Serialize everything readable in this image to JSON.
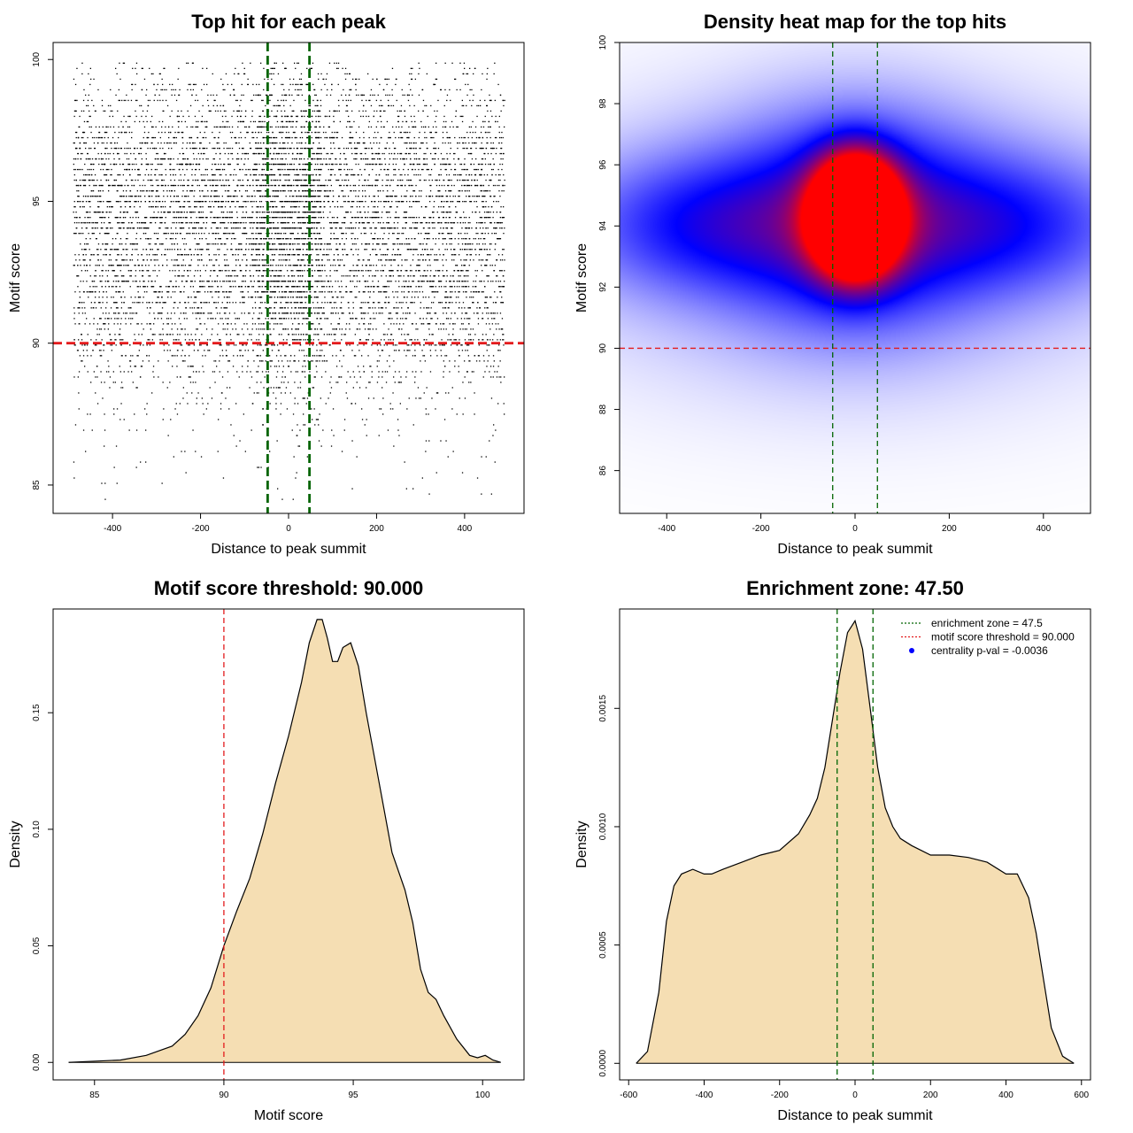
{
  "chart_data": [
    {
      "type": "scatter",
      "title": "Top hit for each peak",
      "xlabel": "Distance to peak summit",
      "ylabel": "Motif score",
      "xlim": [
        -535,
        535
      ],
      "ylim": [
        84.0,
        100.6
      ],
      "xticks": [
        -400,
        -200,
        0,
        200,
        400
      ],
      "yticks": [
        85,
        90,
        95,
        100
      ],
      "x_range_points": [
        -490,
        490
      ],
      "score_step": 0.1875,
      "y_profile": {
        "scores": [
          84.5,
          86.0,
          87.5,
          88.5,
          89.5,
          90.5,
          91.5,
          92.5,
          93.5,
          94.5,
          95.5,
          96.5,
          97.5,
          98.5,
          99.5,
          100.0
        ],
        "row_density": [
          0.01,
          0.03,
          0.08,
          0.18,
          0.35,
          0.55,
          0.75,
          0.9,
          1.0,
          1.0,
          0.95,
          0.8,
          0.55,
          0.35,
          0.18,
          0.1
        ]
      },
      "hlines": [
        {
          "y": 90,
          "color": "#e31a1c",
          "style": "dashed"
        }
      ],
      "vlines": [
        {
          "x": -47.5,
          "color": "#006400",
          "style": "dashed"
        },
        {
          "x": 47.5,
          "color": "#006400",
          "style": "dashed"
        }
      ]
    },
    {
      "type": "heatmap",
      "title": "Density heat map for the top hits",
      "xlabel": "Distance to peak summit",
      "ylabel": "Motif score",
      "xlim": [
        -500,
        500
      ],
      "ylim": [
        84.6,
        100.0
      ],
      "xticks": [
        -400,
        -200,
        0,
        200,
        400
      ],
      "yticks": [
        86,
        88,
        90,
        92,
        94,
        96,
        98,
        100
      ],
      "colormap": [
        "#ffffff",
        "#0000ff",
        "#ff0000"
      ],
      "blobs": [
        {
          "x": 0,
          "y": 94.95,
          "sx": 60,
          "sy": 1.1,
          "weight": 1.0
        },
        {
          "x": 0,
          "y": 93.7,
          "sx": 60,
          "sy": 1.1,
          "weight": 0.97
        },
        {
          "x": 0,
          "y": 94.3,
          "sx": 180,
          "sy": 2.4,
          "weight": 0.45
        },
        {
          "x": -340,
          "y": 94.1,
          "sx": 190,
          "sy": 1.6,
          "weight": 0.32
        },
        {
          "x": 340,
          "y": 94.1,
          "sx": 190,
          "sy": 1.6,
          "weight": 0.3
        },
        {
          "x": 0,
          "y": 93.5,
          "sx": 450,
          "sy": 3.4,
          "weight": 0.2
        }
      ],
      "hlines": [
        {
          "y": 90,
          "color": "#e31a1c",
          "style": "dashed"
        }
      ],
      "vlines": [
        {
          "x": -47.5,
          "color": "#006400",
          "style": "dashed"
        },
        {
          "x": 47.5,
          "color": "#006400",
          "style": "dashed"
        }
      ]
    },
    {
      "type": "area",
      "title": "Motif score threshold: 90.000",
      "xlabel": "Motif score",
      "ylabel": "Density",
      "xlim": [
        83.4,
        101.6
      ],
      "ylim": [
        -0.0075,
        0.1945
      ],
      "xticks": [
        85,
        90,
        95,
        100
      ],
      "yticks": [
        0.0,
        0.05,
        0.1,
        0.15
      ],
      "ytick_labels": [
        "0.00",
        "0.05",
        "0.10",
        "0.15"
      ],
      "fill": "#f5deb3",
      "x": [
        84.0,
        86.0,
        87.0,
        88.0,
        88.5,
        89.0,
        89.5,
        90.0,
        90.5,
        91.0,
        91.5,
        92.0,
        92.5,
        93.0,
        93.3,
        93.6,
        93.8,
        94.0,
        94.2,
        94.4,
        94.6,
        94.9,
        95.2,
        95.5,
        96.0,
        96.5,
        97.0,
        97.3,
        97.6,
        97.9,
        98.2,
        98.5,
        99.0,
        99.5,
        99.8,
        100.1,
        100.4,
        100.7
      ],
      "y": [
        0.0,
        0.001,
        0.003,
        0.007,
        0.012,
        0.02,
        0.032,
        0.05,
        0.065,
        0.079,
        0.098,
        0.12,
        0.14,
        0.163,
        0.18,
        0.19,
        0.19,
        0.182,
        0.172,
        0.172,
        0.178,
        0.18,
        0.17,
        0.15,
        0.12,
        0.09,
        0.074,
        0.06,
        0.04,
        0.03,
        0.027,
        0.02,
        0.01,
        0.003,
        0.002,
        0.003,
        0.001,
        0.0
      ],
      "vlines": [
        {
          "x": 90,
          "color": "#e31a1c",
          "style": "dashed"
        }
      ]
    },
    {
      "type": "area",
      "title": "Enrichment zone: 47.50",
      "xlabel": "Distance to peak summit",
      "ylabel": "Density",
      "xlim": [
        -624,
        624
      ],
      "ylim": [
        -7e-05,
        0.00192
      ],
      "xticks": [
        -600,
        -400,
        -200,
        0,
        200,
        400,
        600
      ],
      "yticks": [
        0.0,
        0.0005,
        0.001,
        0.0015
      ],
      "ytick_labels": [
        "0.0000",
        "0.0005",
        "0.0010",
        "0.0015"
      ],
      "fill": "#f5deb3",
      "x": [
        -580,
        -550,
        -520,
        -500,
        -480,
        -460,
        -430,
        -400,
        -380,
        -350,
        -300,
        -250,
        -200,
        -150,
        -120,
        -100,
        -80,
        -60,
        -40,
        -20,
        0,
        20,
        40,
        60,
        80,
        100,
        120,
        150,
        200,
        250,
        300,
        350,
        400,
        430,
        460,
        480,
        500,
        520,
        550,
        580
      ],
      "y": [
        0.0,
        5e-05,
        0.0003,
        0.0006,
        0.00075,
        0.0008,
        0.00082,
        0.0008,
        0.0008,
        0.00082,
        0.00085,
        0.00088,
        0.0009,
        0.00097,
        0.00105,
        0.00112,
        0.00125,
        0.00145,
        0.00165,
        0.00182,
        0.00187,
        0.00175,
        0.0015,
        0.00125,
        0.00108,
        0.001,
        0.00095,
        0.00092,
        0.00088,
        0.00088,
        0.00087,
        0.00085,
        0.0008,
        0.0008,
        0.0007,
        0.00055,
        0.00035,
        0.00015,
        3e-05,
        0.0
      ],
      "vlines": [
        {
          "x": -47.5,
          "color": "#006400",
          "style": "dashed"
        },
        {
          "x": 47.5,
          "color": "#006400",
          "style": "dashed"
        }
      ],
      "legend": {
        "placement": "top-right",
        "entries": [
          {
            "label": "enrichment zone = 47.5",
            "color": "#006400",
            "marker": "dotted-line"
          },
          {
            "label": "motif score threshold = 90.000",
            "color": "#e31a1c",
            "marker": "dotted-line"
          },
          {
            "label": "centrality p-val = -0.0036",
            "color": "#0000ff",
            "marker": "point"
          }
        ]
      }
    }
  ]
}
